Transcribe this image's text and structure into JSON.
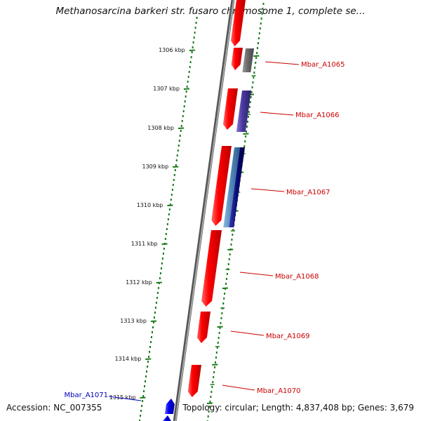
{
  "title": "Methanosarcina barkeri str. fusaro chromosome 1, complete se...",
  "footer": {
    "accession": "Accession: NC_007355",
    "summary": "Topology: circular; Length: 4,837,408 bp; Genes: 3,679"
  },
  "colors": {
    "forward_strand": "#ff0000",
    "reverse_strand": "#0000ee",
    "backbone": "#888888",
    "tick": "#1a7a1a",
    "forward_label": "#cc0000",
    "reverse_label": "#0000bb",
    "gray_gene": "#6e6e6e",
    "purple_gene": "#4a3aa0",
    "steel_gene": "#4f86b8",
    "navy_gene": "#0a0a7a"
  },
  "scale": {
    "unit": "kbp",
    "ticks": [
      "1306 kbp",
      "1307 kbp",
      "1308 kbp",
      "1309 kbp",
      "1310 kbp",
      "1311 kbp",
      "1312 kbp",
      "1313 kbp",
      "1314 kbp",
      "1315 kbp"
    ]
  },
  "gene_labels": [
    {
      "name": "Mbar_A1065",
      "strand": "forward"
    },
    {
      "name": "Mbar_A1066",
      "strand": "forward"
    },
    {
      "name": "Mbar_A1067",
      "strand": "forward"
    },
    {
      "name": "Mbar_A1068",
      "strand": "forward"
    },
    {
      "name": "Mbar_A1069",
      "strand": "forward"
    },
    {
      "name": "Mbar_A1070",
      "strand": "forward"
    },
    {
      "name": "Mbar_A1071",
      "strand": "reverse"
    }
  ]
}
